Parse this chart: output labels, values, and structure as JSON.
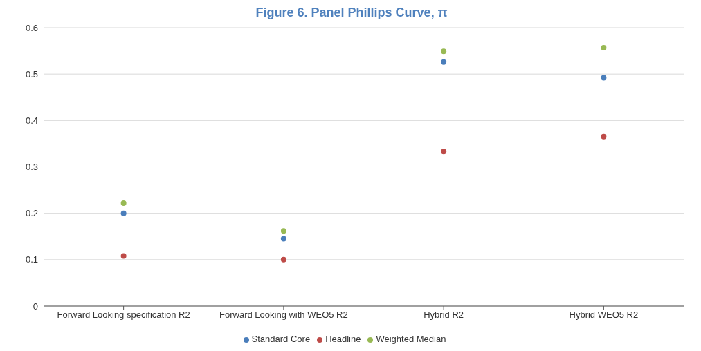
{
  "chart_data": {
    "type": "scatter",
    "title": "Figure 6. Panel Phillips Curve, π",
    "categories": [
      "Forward Looking specification R2",
      "Forward Looking with WEO5 R2",
      "Hybrid R2",
      "Hybrid WEO5 R2"
    ],
    "series": [
      {
        "name": "Standard Core",
        "color": "#4a7ebb",
        "values": [
          0.2,
          0.145,
          0.526,
          0.492
        ]
      },
      {
        "name": "Headline",
        "color": "#be4b48",
        "values": [
          0.108,
          0.1,
          0.333,
          0.365
        ]
      },
      {
        "name": "Weighted Median",
        "color": "#98b954",
        "values": [
          0.222,
          0.162,
          0.549,
          0.557
        ]
      }
    ],
    "ylim": [
      0,
      0.6
    ],
    "yticks": [
      0,
      0.1,
      0.2,
      0.3,
      0.4,
      0.5,
      0.6
    ],
    "grid": "y",
    "legend": "bottom",
    "marker": "circle"
  }
}
